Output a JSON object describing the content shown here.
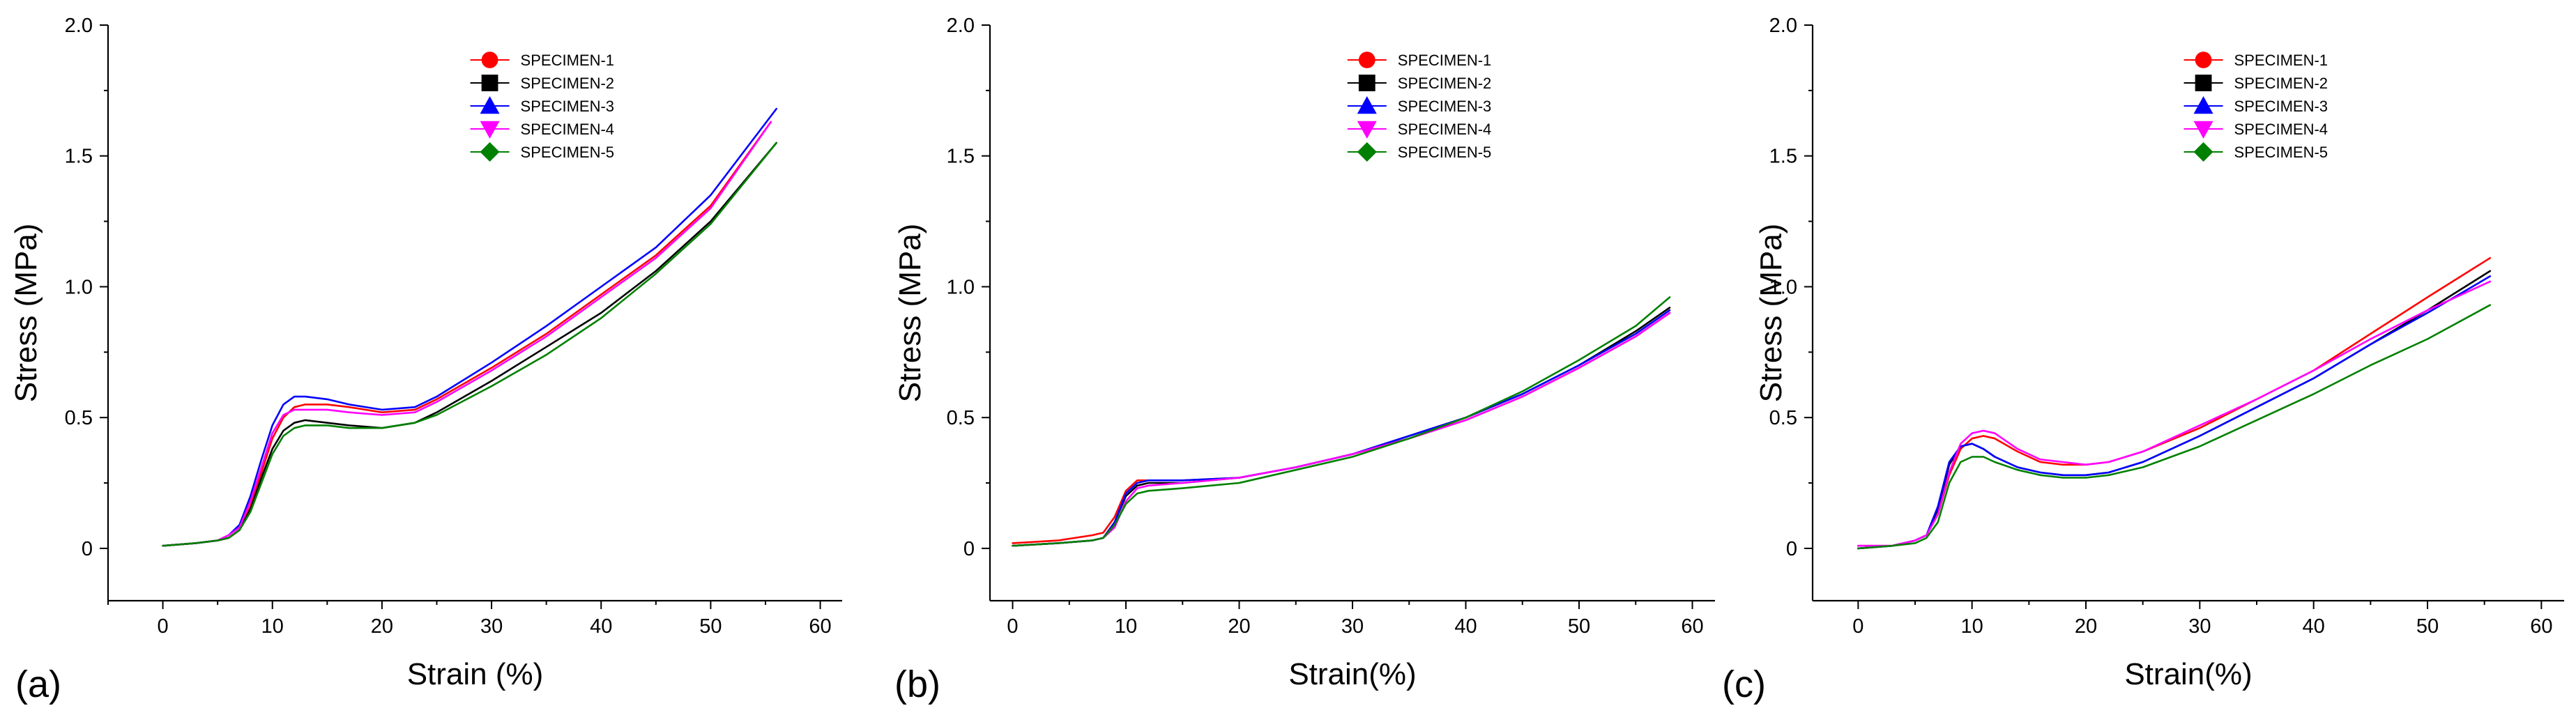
{
  "chart_data": [
    {
      "type": "line",
      "panel_label": "(a)",
      "xlabel": "Strain (%)",
      "ylabel": "Stress (MPa)",
      "xlim": [
        -5,
        62
      ],
      "ylim": [
        -0.2,
        2.0
      ],
      "xticks": [
        0,
        10,
        20,
        30,
        40,
        50,
        60
      ],
      "xtick_labels": [
        "0",
        "10",
        "20",
        "30",
        "40",
        "50",
        "60"
      ],
      "yticks": [
        0,
        0.5,
        1.0,
        1.5,
        2.0
      ],
      "ytick_labels": [
        "0",
        "0.5",
        "1.0",
        "1.5",
        "2.0"
      ],
      "legend_position": "top-center",
      "series": [
        {
          "name": "SPECIMEN-1",
          "color": "#FF0000",
          "marker": "circle",
          "x": [
            0,
            3,
            5,
            6,
            7,
            8,
            9,
            10,
            11,
            12,
            13,
            15,
            17,
            20,
            23,
            25,
            30,
            35,
            40,
            45,
            50,
            55.5
          ],
          "y": [
            0.01,
            0.02,
            0.03,
            0.04,
            0.07,
            0.16,
            0.29,
            0.42,
            0.5,
            0.54,
            0.55,
            0.55,
            0.54,
            0.52,
            0.53,
            0.57,
            0.69,
            0.82,
            0.97,
            1.12,
            1.31,
            1.63
          ]
        },
        {
          "name": "SPECIMEN-2",
          "color": "#000000",
          "marker": "square",
          "x": [
            0,
            3,
            5,
            6,
            7,
            8,
            9,
            10,
            11,
            12,
            13,
            15,
            17,
            20,
            23,
            25,
            30,
            35,
            40,
            45,
            50,
            56
          ],
          "y": [
            0.01,
            0.02,
            0.03,
            0.04,
            0.07,
            0.15,
            0.27,
            0.38,
            0.45,
            0.48,
            0.49,
            0.48,
            0.47,
            0.46,
            0.48,
            0.52,
            0.64,
            0.77,
            0.9,
            1.06,
            1.25,
            1.55
          ]
        },
        {
          "name": "SPECIMEN-3",
          "color": "#0000FF",
          "marker": "triangle-up",
          "x": [
            0,
            3,
            5,
            6,
            7,
            8,
            9,
            10,
            11,
            12,
            13,
            15,
            17,
            20,
            23,
            25,
            30,
            35,
            40,
            45,
            50,
            56
          ],
          "y": [
            0.01,
            0.02,
            0.03,
            0.05,
            0.09,
            0.2,
            0.34,
            0.47,
            0.55,
            0.58,
            0.58,
            0.57,
            0.55,
            0.53,
            0.54,
            0.58,
            0.71,
            0.85,
            1.0,
            1.15,
            1.35,
            1.68
          ]
        },
        {
          "name": "SPECIMEN-4",
          "color": "#FF00FF",
          "marker": "triangle-down",
          "x": [
            0,
            3,
            5,
            6,
            7,
            8,
            9,
            10,
            11,
            12,
            13,
            15,
            17,
            20,
            23,
            25,
            30,
            35,
            40,
            45,
            50,
            55.5
          ],
          "y": [
            0.01,
            0.02,
            0.03,
            0.05,
            0.08,
            0.18,
            0.31,
            0.44,
            0.51,
            0.53,
            0.53,
            0.53,
            0.52,
            0.51,
            0.52,
            0.56,
            0.68,
            0.81,
            0.96,
            1.11,
            1.3,
            1.63
          ]
        },
        {
          "name": "SPECIMEN-5",
          "color": "#008000",
          "marker": "diamond",
          "x": [
            0,
            3,
            5,
            6,
            7,
            8,
            9,
            10,
            11,
            12,
            13,
            15,
            17,
            20,
            23,
            25,
            30,
            35,
            40,
            45,
            50,
            56
          ],
          "y": [
            0.01,
            0.02,
            0.03,
            0.04,
            0.07,
            0.14,
            0.25,
            0.36,
            0.43,
            0.46,
            0.47,
            0.47,
            0.46,
            0.46,
            0.48,
            0.51,
            0.62,
            0.74,
            0.88,
            1.05,
            1.24,
            1.55
          ]
        }
      ]
    },
    {
      "type": "line",
      "panel_label": "(b)",
      "xlabel": "Strain(%)",
      "ylabel": "Stress (MPa)",
      "xlim": [
        -2,
        62
      ],
      "ylim": [
        -0.2,
        2.0
      ],
      "xticks": [
        0,
        10,
        20,
        30,
        40,
        50,
        60
      ],
      "xtick_labels": [
        "0",
        "10",
        "20",
        "30",
        "40",
        "50",
        "60"
      ],
      "yticks": [
        0,
        0.5,
        1.0,
        1.5,
        2.0
      ],
      "ytick_labels": [
        "0",
        "0.5",
        "1.0",
        "1.5",
        "2.0"
      ],
      "legend_position": "top-center",
      "series": [
        {
          "name": "SPECIMEN-1",
          "color": "#FF0000",
          "marker": "circle",
          "x": [
            0,
            4,
            7,
            8,
            9,
            10,
            11,
            12,
            15,
            20,
            25,
            30,
            35,
            40,
            45,
            50,
            55,
            58
          ],
          "y": [
            0.02,
            0.03,
            0.05,
            0.06,
            0.12,
            0.22,
            0.26,
            0.26,
            0.26,
            0.27,
            0.31,
            0.36,
            0.42,
            0.49,
            0.58,
            0.69,
            0.81,
            0.9
          ]
        },
        {
          "name": "SPECIMEN-2",
          "color": "#000000",
          "marker": "square",
          "x": [
            0,
            4,
            7,
            8,
            9,
            10,
            11,
            12,
            15,
            20,
            25,
            30,
            35,
            40,
            45,
            50,
            55,
            58
          ],
          "y": [
            0.01,
            0.02,
            0.03,
            0.04,
            0.1,
            0.2,
            0.24,
            0.25,
            0.25,
            0.27,
            0.31,
            0.36,
            0.43,
            0.5,
            0.59,
            0.7,
            0.83,
            0.92
          ]
        },
        {
          "name": "SPECIMEN-3",
          "color": "#0000FF",
          "marker": "triangle-up",
          "x": [
            0,
            4,
            7,
            8,
            9,
            10,
            11,
            12,
            15,
            20,
            25,
            30,
            35,
            40,
            45,
            50,
            55,
            58
          ],
          "y": [
            0.01,
            0.02,
            0.03,
            0.04,
            0.1,
            0.21,
            0.25,
            0.26,
            0.26,
            0.27,
            0.31,
            0.36,
            0.43,
            0.5,
            0.59,
            0.7,
            0.82,
            0.91
          ]
        },
        {
          "name": "SPECIMEN-4",
          "color": "#FF00FF",
          "marker": "triangle-down",
          "x": [
            0,
            4,
            7,
            8,
            9,
            10,
            11,
            12,
            15,
            20,
            25,
            30,
            35,
            40,
            45,
            50,
            55,
            58
          ],
          "y": [
            0.01,
            0.02,
            0.03,
            0.04,
            0.08,
            0.18,
            0.23,
            0.24,
            0.25,
            0.27,
            0.31,
            0.36,
            0.42,
            0.49,
            0.58,
            0.69,
            0.81,
            0.9
          ]
        },
        {
          "name": "SPECIMEN-5",
          "color": "#008000",
          "marker": "diamond",
          "x": [
            0,
            4,
            7,
            8,
            9,
            10,
            11,
            12,
            15,
            20,
            25,
            30,
            35,
            40,
            45,
            50,
            55,
            58
          ],
          "y": [
            0.01,
            0.02,
            0.03,
            0.04,
            0.09,
            0.17,
            0.21,
            0.22,
            0.23,
            0.25,
            0.3,
            0.35,
            0.42,
            0.5,
            0.6,
            0.72,
            0.85,
            0.96
          ]
        }
      ]
    },
    {
      "type": "line",
      "panel_label": "(c)",
      "xlabel": "Strain(%)",
      "ylabel": "Stress (MPa)",
      "xlim": [
        -4,
        62
      ],
      "ylim": [
        -0.2,
        2.0
      ],
      "xticks": [
        0,
        10,
        20,
        30,
        40,
        50,
        60
      ],
      "xtick_labels": [
        "0",
        "10",
        "20",
        "30",
        "40",
        "50",
        "60"
      ],
      "yticks": [
        0,
        0.5,
        1.0,
        1.5,
        2.0
      ],
      "ytick_labels": [
        "0",
        "0.5",
        "1.0",
        "1.5",
        "2.0"
      ],
      "legend_position": "top-center",
      "series": [
        {
          "name": "SPECIMEN-1",
          "color": "#FF0000",
          "marker": "circle",
          "x": [
            0,
            3,
            5,
            6,
            7,
            8,
            9,
            10,
            11,
            12,
            14,
            16,
            18,
            20,
            22,
            25,
            30,
            35,
            40,
            45,
            50,
            55.5
          ],
          "y": [
            0.01,
            0.01,
            0.03,
            0.05,
            0.13,
            0.28,
            0.38,
            0.42,
            0.43,
            0.42,
            0.37,
            0.33,
            0.32,
            0.32,
            0.33,
            0.37,
            0.46,
            0.57,
            0.68,
            0.82,
            0.96,
            1.11
          ]
        },
        {
          "name": "SPECIMEN-2",
          "color": "#000000",
          "marker": "square",
          "x": [
            0,
            3,
            5,
            6,
            7,
            8,
            9,
            10,
            11,
            12,
            14,
            16,
            18,
            20,
            22,
            25,
            30,
            35,
            40,
            45,
            50,
            55.5
          ],
          "y": [
            0.0,
            0.01,
            0.03,
            0.05,
            0.15,
            0.32,
            0.39,
            0.4,
            0.38,
            0.35,
            0.31,
            0.29,
            0.28,
            0.28,
            0.29,
            0.33,
            0.43,
            0.54,
            0.65,
            0.78,
            0.91,
            1.06
          ]
        },
        {
          "name": "SPECIMEN-3",
          "color": "#0000FF",
          "marker": "triangle-up",
          "x": [
            0,
            3,
            5,
            6,
            7,
            8,
            9,
            10,
            11,
            12,
            14,
            16,
            18,
            20,
            22,
            25,
            30,
            35,
            40,
            45,
            50,
            55.5
          ],
          "y": [
            0.0,
            0.01,
            0.03,
            0.05,
            0.16,
            0.33,
            0.39,
            0.4,
            0.38,
            0.35,
            0.31,
            0.29,
            0.28,
            0.28,
            0.29,
            0.33,
            0.43,
            0.54,
            0.65,
            0.78,
            0.9,
            1.04
          ]
        },
        {
          "name": "SPECIMEN-4",
          "color": "#FF00FF",
          "marker": "triangle-down",
          "x": [
            0,
            3,
            5,
            6,
            7,
            8,
            9,
            10,
            11,
            12,
            14,
            16,
            18,
            20,
            22,
            25,
            30,
            35,
            40,
            45,
            50,
            55.5
          ],
          "y": [
            0.01,
            0.01,
            0.03,
            0.05,
            0.13,
            0.29,
            0.4,
            0.44,
            0.45,
            0.44,
            0.38,
            0.34,
            0.33,
            0.32,
            0.33,
            0.37,
            0.47,
            0.57,
            0.68,
            0.8,
            0.91,
            1.02
          ]
        },
        {
          "name": "SPECIMEN-5",
          "color": "#008000",
          "marker": "diamond",
          "x": [
            0,
            3,
            5,
            6,
            7,
            8,
            9,
            10,
            11,
            12,
            14,
            16,
            18,
            20,
            22,
            25,
            30,
            35,
            40,
            45,
            50,
            55.5
          ],
          "y": [
            0.0,
            0.01,
            0.02,
            0.04,
            0.1,
            0.25,
            0.33,
            0.35,
            0.35,
            0.33,
            0.3,
            0.28,
            0.27,
            0.27,
            0.28,
            0.31,
            0.39,
            0.49,
            0.59,
            0.7,
            0.8,
            0.93
          ]
        }
      ]
    }
  ]
}
